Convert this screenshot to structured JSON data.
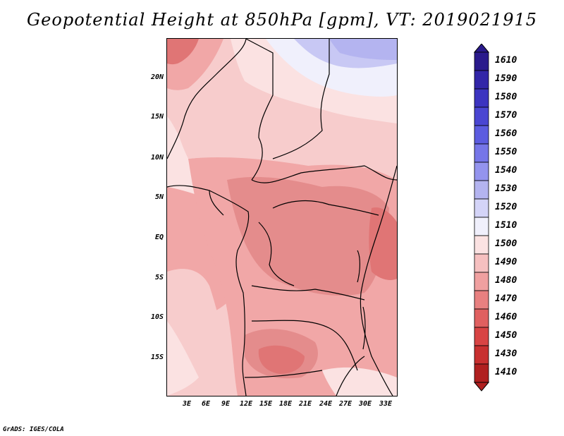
{
  "title": "Geopotential Height at 850hPa [gpm], VT: 2019021915",
  "credit": "GrADS: IGES/COLA",
  "map": {
    "lat_labels": [
      "20N",
      "15N",
      "10N",
      "5N",
      "EQ",
      "5S",
      "10S",
      "15S"
    ],
    "lon_labels": [
      "3E",
      "6E",
      "9E",
      "12E",
      "15E",
      "18E",
      "21E",
      "24E",
      "27E",
      "30E",
      "33E"
    ],
    "fields": [
      {
        "value": 1520,
        "color": "#c8c8f4"
      },
      {
        "value": 1530,
        "color": "#b4b4f0"
      },
      {
        "value": 1510,
        "color": "#f0f0fc"
      },
      {
        "value": 1500,
        "color": "#fbe2e2"
      },
      {
        "value": 1490,
        "color": "#f7cccc"
      },
      {
        "value": 1480,
        "color": "#f1a7a7"
      },
      {
        "value": 1470,
        "color": "#e48c8c"
      },
      {
        "value": 1460,
        "color": "#e07575"
      },
      {
        "value": 1450,
        "color": "#e05555"
      }
    ]
  },
  "legend": {
    "items": [
      {
        "label": "1610",
        "color": "#2a1a8c"
      },
      {
        "label": "1590",
        "color": "#3226a8"
      },
      {
        "label": "1580",
        "color": "#3c34c0"
      },
      {
        "label": "1570",
        "color": "#4a46d2"
      },
      {
        "label": "1560",
        "color": "#5c5ce0"
      },
      {
        "label": "1550",
        "color": "#7676e8"
      },
      {
        "label": "1540",
        "color": "#9494ee"
      },
      {
        "label": "1530",
        "color": "#b4b4f0"
      },
      {
        "label": "1520",
        "color": "#d4d4f8"
      },
      {
        "label": "1510",
        "color": "#f0f0fc"
      },
      {
        "label": "1500",
        "color": "#fbe2e2"
      },
      {
        "label": "1490",
        "color": "#f6c0c0"
      },
      {
        "label": "1480",
        "color": "#f0a0a0"
      },
      {
        "label": "1470",
        "color": "#e88080"
      },
      {
        "label": "1460",
        "color": "#e06060"
      },
      {
        "label": "1450",
        "color": "#d84444"
      },
      {
        "label": "1430",
        "color": "#c83030"
      },
      {
        "label": "1410",
        "color": "#b02020"
      }
    ]
  }
}
